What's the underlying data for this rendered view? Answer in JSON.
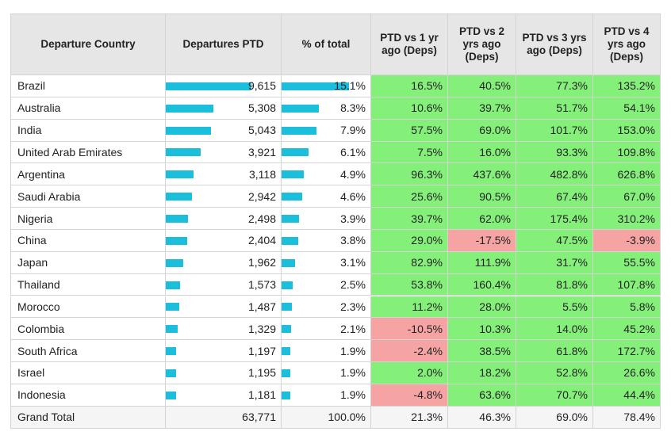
{
  "table": {
    "headers": [
      "Departure Country",
      "Departures PTD",
      "% of total",
      "PTD vs 1 yr ago (Deps)",
      "PTD vs 2 yrs ago (Deps)",
      "PTD vs 3 yrs ago (Deps)",
      "PTD vs 4 yrs ago (Deps)"
    ],
    "rows": [
      {
        "country": "Brazil",
        "departures": {
          "value": 9615,
          "label": "9,615"
        },
        "share": {
          "value": 15.1,
          "label": "15.1%"
        },
        "changes": [
          "16.5%",
          "40.5%",
          "77.3%",
          "135.2%"
        ]
      },
      {
        "country": "Australia",
        "departures": {
          "value": 5308,
          "label": "5,308"
        },
        "share": {
          "value": 8.3,
          "label": "8.3%"
        },
        "changes": [
          "10.6%",
          "39.7%",
          "51.7%",
          "54.1%"
        ]
      },
      {
        "country": "India",
        "departures": {
          "value": 5043,
          "label": "5,043"
        },
        "share": {
          "value": 7.9,
          "label": "7.9%"
        },
        "changes": [
          "57.5%",
          "69.0%",
          "101.7%",
          "153.0%"
        ]
      },
      {
        "country": "United Arab Emirates",
        "departures": {
          "value": 3921,
          "label": "3,921"
        },
        "share": {
          "value": 6.1,
          "label": "6.1%"
        },
        "changes": [
          "7.5%",
          "16.0%",
          "93.3%",
          "109.8%"
        ]
      },
      {
        "country": "Argentina",
        "departures": {
          "value": 3118,
          "label": "3,118"
        },
        "share": {
          "value": 4.9,
          "label": "4.9%"
        },
        "changes": [
          "96.3%",
          "437.6%",
          "482.8%",
          "626.8%"
        ]
      },
      {
        "country": "Saudi Arabia",
        "departures": {
          "value": 2942,
          "label": "2,942"
        },
        "share": {
          "value": 4.6,
          "label": "4.6%"
        },
        "changes": [
          "25.6%",
          "90.5%",
          "67.4%",
          "67.0%"
        ]
      },
      {
        "country": "Nigeria",
        "departures": {
          "value": 2498,
          "label": "2,498"
        },
        "share": {
          "value": 3.9,
          "label": "3.9%"
        },
        "changes": [
          "39.7%",
          "62.0%",
          "175.4%",
          "310.2%"
        ]
      },
      {
        "country": "China",
        "departures": {
          "value": 2404,
          "label": "2,404"
        },
        "share": {
          "value": 3.8,
          "label": "3.8%"
        },
        "changes": [
          "29.0%",
          "-17.5%",
          "47.5%",
          "-3.9%"
        ]
      },
      {
        "country": "Japan",
        "departures": {
          "value": 1962,
          "label": "1,962"
        },
        "share": {
          "value": 3.1,
          "label": "3.1%"
        },
        "changes": [
          "82.9%",
          "111.9%",
          "31.7%",
          "55.5%"
        ]
      },
      {
        "country": "Thailand",
        "departures": {
          "value": 1573,
          "label": "1,573"
        },
        "share": {
          "value": 2.5,
          "label": "2.5%"
        },
        "changes": [
          "53.8%",
          "160.4%",
          "81.8%",
          "107.8%"
        ]
      },
      {
        "country": "Morocco",
        "departures": {
          "value": 1487,
          "label": "1,487"
        },
        "share": {
          "value": 2.3,
          "label": "2.3%"
        },
        "changes": [
          "11.2%",
          "28.0%",
          "5.5%",
          "5.8%"
        ]
      },
      {
        "country": "Colombia",
        "departures": {
          "value": 1329,
          "label": "1,329"
        },
        "share": {
          "value": 2.1,
          "label": "2.1%"
        },
        "changes": [
          "-10.5%",
          "10.3%",
          "14.0%",
          "45.2%"
        ]
      },
      {
        "country": "South Africa",
        "departures": {
          "value": 1197,
          "label": "1,197"
        },
        "share": {
          "value": 1.9,
          "label": "1.9%"
        },
        "changes": [
          "-2.4%",
          "38.5%",
          "61.8%",
          "172.7%"
        ]
      },
      {
        "country": "Israel",
        "departures": {
          "value": 1195,
          "label": "1,195"
        },
        "share": {
          "value": 1.9,
          "label": "1.9%"
        },
        "changes": [
          "2.0%",
          "18.2%",
          "52.8%",
          "26.6%"
        ]
      },
      {
        "country": "Indonesia",
        "departures": {
          "value": 1181,
          "label": "1,181"
        },
        "share": {
          "value": 1.9,
          "label": "1.9%"
        },
        "changes": [
          "-4.8%",
          "63.6%",
          "70.7%",
          "44.4%"
        ]
      }
    ],
    "total": {
      "label": "Grand Total",
      "departures": "63,771",
      "share": "100.0%",
      "changes": [
        "21.3%",
        "46.3%",
        "69.0%",
        "78.4%"
      ]
    }
  }
}
